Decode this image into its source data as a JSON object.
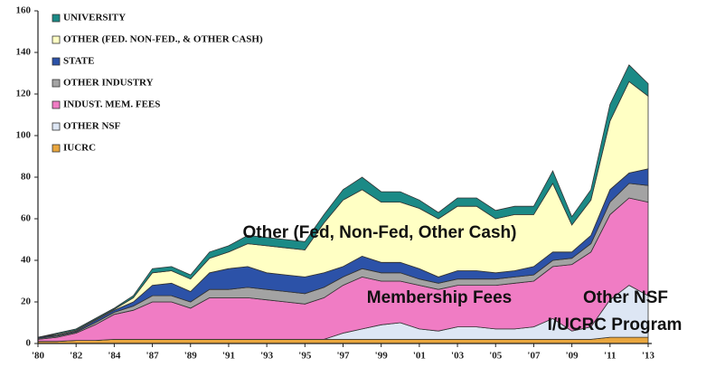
{
  "chart_data": {
    "type": "stacked_area",
    "categories": [
      "'80",
      null,
      "'82",
      null,
      "'84",
      null,
      "'87",
      null,
      "'89",
      null,
      "'91",
      null,
      "'93",
      null,
      "'95",
      null,
      "'97",
      null,
      "'99",
      null,
      "'01",
      null,
      "'03",
      null,
      "'05",
      null,
      "'07",
      null,
      "'09",
      null,
      "'11",
      null,
      "'13"
    ],
    "series": [
      {
        "name": "IUCRC",
        "color": "#e9a63e",
        "values": [
          1,
          1,
          1.5,
          1.5,
          2,
          2,
          2,
          2,
          2,
          2,
          2,
          2,
          2,
          2,
          2,
          2,
          2,
          2,
          2,
          2,
          2,
          2,
          2,
          2,
          2,
          2,
          2,
          2,
          2,
          2,
          3,
          3,
          3
        ]
      },
      {
        "name": "OTHER NSF",
        "color": "#dde6f4",
        "values": [
          0,
          0,
          0,
          0,
          0,
          0,
          0,
          0,
          0,
          0,
          0,
          0,
          0,
          0,
          0,
          0,
          3,
          5,
          7,
          8,
          5,
          4,
          6,
          6,
          5,
          5,
          6,
          10,
          4,
          6,
          18,
          25,
          20
        ]
      },
      {
        "name": "INDUST. MEM. FEES",
        "color": "#f07cc4",
        "values": [
          1,
          2,
          3.5,
          7.5,
          12,
          14,
          18,
          18,
          15,
          20,
          20,
          20,
          19,
          18,
          17,
          20,
          23,
          25,
          21,
          20,
          21,
          20,
          20,
          20,
          21,
          22,
          22,
          25,
          32,
          36,
          41,
          42,
          45
        ]
      },
      {
        "name": "OTHER INDUSTRY",
        "color": "#a3a3a3",
        "values": [
          0.5,
          0.5,
          0.5,
          1,
          1,
          2,
          3,
          3,
          3,
          4,
          4,
          5,
          5,
          5,
          5,
          5,
          4,
          4,
          4,
          4,
          3,
          3,
          3,
          3,
          3,
          3,
          3,
          3,
          3,
          4,
          6,
          7,
          8
        ]
      },
      {
        "name": "STATE",
        "color": "#2c52a8",
        "values": [
          0.5,
          0.5,
          0.5,
          1,
          1,
          2,
          5,
          6,
          5,
          8,
          10,
          10,
          8,
          8,
          8,
          7,
          5,
          6,
          5,
          5,
          5,
          3,
          4,
          4,
          3,
          3,
          4,
          4,
          3,
          4,
          6,
          5,
          8
        ]
      },
      {
        "name": "OTHER (FED. NON-FED., & OTHER CASH)",
        "color": "#ffffc4",
        "values": [
          0,
          0.5,
          0.5,
          0.5,
          0.5,
          2,
          6,
          6,
          6,
          7,
          8,
          11,
          13,
          13,
          13,
          24,
          32,
          32,
          29,
          29,
          29,
          28,
          31,
          31,
          26,
          27,
          25,
          33,
          13,
          17,
          33,
          44,
          35
        ]
      },
      {
        "name": "UNIVERSITY",
        "color": "#1b8a86",
        "values": [
          0,
          0.5,
          0.5,
          0.5,
          0.5,
          1,
          2,
          2,
          2,
          3,
          3,
          4,
          4,
          4,
          4,
          4,
          5,
          6,
          5,
          5,
          4,
          3,
          4,
          4,
          4,
          4,
          4,
          6,
          4,
          5,
          8,
          8,
          6
        ]
      }
    ],
    "ylim": [
      0,
      160
    ],
    "yticks": [
      0,
      20,
      40,
      60,
      80,
      100,
      120,
      140,
      160
    ],
    "annotations": [
      "Other (Fed, Non-Fed, Other Cash)",
      "Membership Fees",
      "Other NSF",
      "I/UCRC Program"
    ]
  }
}
